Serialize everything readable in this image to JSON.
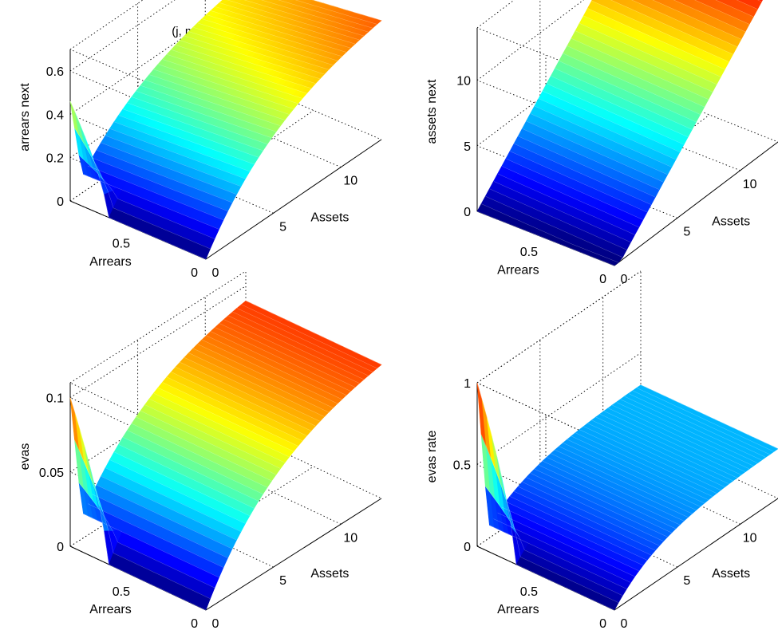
{
  "figure": {
    "title": "(j, m, eta)=5,1,4"
  },
  "chart_data": [
    {
      "type": "surface",
      "title": "(j, m, eta)=5,1,4",
      "xlabel": "Assets",
      "ylabel": "Arrears",
      "zlabel": "arrears next",
      "xlim": [
        0,
        13
      ],
      "ylim": [
        0,
        1
      ],
      "zlim": [
        0,
        0.7
      ],
      "xticks": [
        "0",
        "5",
        "10"
      ],
      "yticks": [
        "0",
        "0.5"
      ],
      "zticks": [
        "0",
        "0.2",
        "0.4",
        "0.6"
      ],
      "grid": true,
      "colormap": "jet",
      "description_points": [
        {
          "assets": 0,
          "arrears": 1,
          "z": 0.46
        },
        {
          "assets": 0,
          "arrears": 0.5,
          "z": 0.05
        },
        {
          "assets": 0,
          "arrears": 0,
          "z": 0.0
        },
        {
          "assets": 13,
          "arrears": 1,
          "z": 0.55
        },
        {
          "assets": 13,
          "arrears": 0,
          "z": 0.55
        }
      ]
    },
    {
      "type": "surface",
      "title": "",
      "xlabel": "Assets",
      "ylabel": "Arrears",
      "zlabel": "assets next",
      "xlim": [
        0,
        13
      ],
      "ylim": [
        0,
        1
      ],
      "zlim": [
        0,
        14
      ],
      "xticks": [
        "0",
        "5",
        "10"
      ],
      "yticks": [
        "0",
        "0.5"
      ],
      "zticks": [
        "0",
        "5",
        "10"
      ],
      "grid": true,
      "colormap": "jet",
      "description_points": [
        {
          "assets": 0,
          "arrears": 1,
          "z": 0.0
        },
        {
          "assets": 0,
          "arrears": 0,
          "z": 0.0
        },
        {
          "assets": 13,
          "arrears": 1,
          "z": 13.0
        },
        {
          "assets": 13,
          "arrears": 0,
          "z": 13.0
        }
      ]
    },
    {
      "type": "surface",
      "title": "",
      "xlabel": "Assets",
      "ylabel": "Arrears",
      "zlabel": "evas",
      "xlim": [
        0,
        13
      ],
      "ylim": [
        0,
        1
      ],
      "zlim": [
        0,
        0.11
      ],
      "xticks": [
        "0",
        "5",
        "10"
      ],
      "yticks": [
        "0",
        "0.5"
      ],
      "zticks": [
        "0",
        "0.05",
        "0.1"
      ],
      "grid": true,
      "colormap": "jet",
      "description_points": [
        {
          "assets": 0,
          "arrears": 1,
          "z": 0.1
        },
        {
          "assets": 0,
          "arrears": 0.5,
          "z": 0.01
        },
        {
          "assets": 0,
          "arrears": 0,
          "z": 0.0
        },
        {
          "assets": 13,
          "arrears": 1,
          "z": 0.09
        },
        {
          "assets": 13,
          "arrears": 0,
          "z": 0.09
        }
      ]
    },
    {
      "type": "surface",
      "title": "",
      "xlabel": "Assets",
      "ylabel": "Arrears",
      "zlabel": "evas rate",
      "xlim": [
        0,
        13
      ],
      "ylim": [
        0,
        1
      ],
      "zlim": [
        0,
        1
      ],
      "xticks": [
        "0",
        "5",
        "10"
      ],
      "yticks": [
        "0",
        "0.5"
      ],
      "zticks": [
        "0",
        "0.5",
        "1"
      ],
      "grid": true,
      "colormap": "jet",
      "description_points": [
        {
          "assets": 0,
          "arrears": 1,
          "z": 1.0
        },
        {
          "assets": 0,
          "arrears": 0.5,
          "z": 0.1
        },
        {
          "assets": 0,
          "arrears": 0,
          "z": 0.0
        },
        {
          "assets": 13,
          "arrears": 1,
          "z": 0.33
        },
        {
          "assets": 13,
          "arrears": 0,
          "z": 0.33
        }
      ]
    }
  ]
}
